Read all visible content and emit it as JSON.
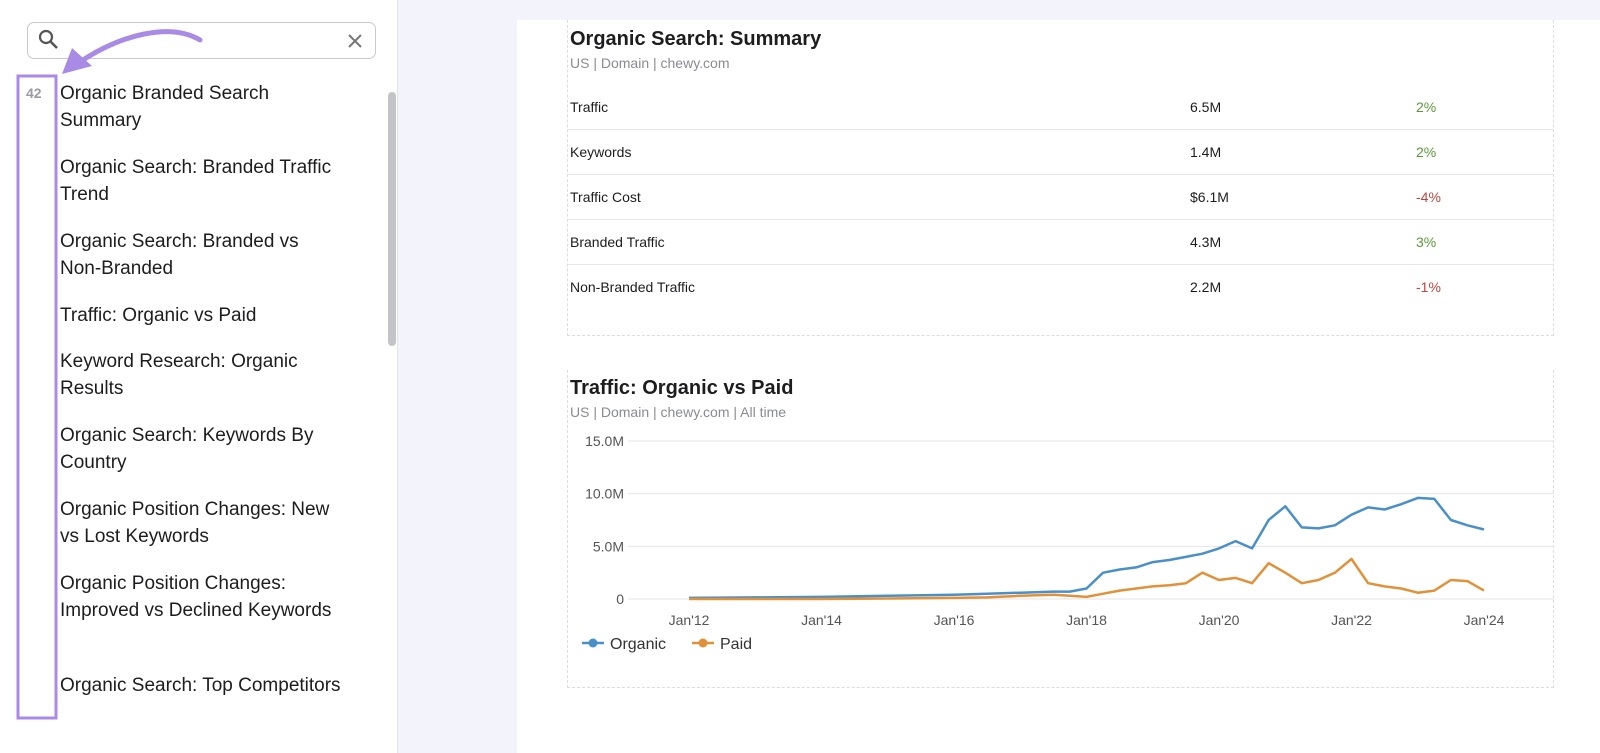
{
  "sidebar": {
    "badge": "42",
    "items": [
      "Organic Branded Search Summary",
      "Organic Search: Branded Traffic Trend",
      "Organic Search: Branded vs Non-Branded",
      "Traffic: Organic vs Paid",
      "Keyword Research: Organic Results",
      "Organic Search: Keywords By Country",
      "Organic Position Changes: New vs Lost Keywords",
      "Organic Position Changes: Improved vs Declined Keywords",
      "Organic Search: Top Competitors"
    ]
  },
  "summary": {
    "title": "Organic Search: Summary",
    "subtitle": "US | Domain | chewy.com",
    "rows": [
      [
        "Traffic",
        "6.5M",
        "2%"
      ],
      [
        "Keywords",
        "1.4M",
        "2%"
      ],
      [
        "Traffic Cost",
        "$6.1M",
        "-4%"
      ],
      [
        "Branded Traffic",
        "4.3M",
        "3%"
      ],
      [
        "Non-Branded Traffic",
        "2.2M",
        "-1%"
      ]
    ]
  },
  "chart_data": {
    "type": "line",
    "title": "Traffic: Organic vs Paid",
    "subtitle": "US | Domain | chewy.com | All time",
    "x": [
      "2012-01",
      "2013-01",
      "2014-01",
      "2015-01",
      "2016-01",
      "2016-07",
      "2017-01",
      "2017-07",
      "2017-10",
      "2018-01",
      "2018-04",
      "2018-07",
      "2018-10",
      "2019-01",
      "2019-04",
      "2019-07",
      "2019-10",
      "2020-01",
      "2020-04",
      "2020-07",
      "2020-10",
      "2021-01",
      "2021-04",
      "2021-07",
      "2021-10",
      "2022-01",
      "2022-04",
      "2022-07",
      "2022-10",
      "2023-01",
      "2023-04",
      "2023-07",
      "2023-10",
      "2024-01"
    ],
    "series": [
      {
        "name": "Organic",
        "color": "#4a8fc7",
        "values": [
          100000,
          150000,
          200000,
          300000,
          400000,
          500000,
          600000,
          700000,
          700000,
          1000000,
          2500000,
          2800000,
          3000000,
          3500000,
          3700000,
          4000000,
          4300000,
          4800000,
          5500000,
          4800000,
          7500000,
          8800000,
          6800000,
          6700000,
          7000000,
          8000000,
          8700000,
          8500000,
          9000000,
          9600000,
          9500000,
          7500000,
          7000000,
          6600000
        ]
      },
      {
        "name": "Paid",
        "color": "#e0913a",
        "values": [
          0,
          0,
          0,
          50000,
          100000,
          150000,
          300000,
          400000,
          300000,
          200000,
          500000,
          800000,
          1000000,
          1200000,
          1300000,
          1500000,
          2500000,
          1800000,
          2000000,
          1500000,
          3400000,
          2500000,
          1500000,
          1800000,
          2500000,
          3800000,
          1500000,
          1200000,
          1000000,
          600000,
          800000,
          1800000,
          1700000,
          800000
        ]
      }
    ],
    "ylim": [
      0,
      15000000
    ],
    "yticks": [
      {
        "value": 0,
        "label": "0"
      },
      {
        "value": 5000000,
        "label": "5.0M"
      },
      {
        "value": 10000000,
        "label": "10.0M"
      },
      {
        "value": 15000000,
        "label": "15.0M"
      }
    ],
    "xticks": [
      {
        "value": "2012-01",
        "label": "Jan'12"
      },
      {
        "value": "2014-01",
        "label": "Jan'14"
      },
      {
        "value": "2016-01",
        "label": "Jan'16"
      },
      {
        "value": "2018-01",
        "label": "Jan'18"
      },
      {
        "value": "2020-01",
        "label": "Jan'20"
      },
      {
        "value": "2022-01",
        "label": "Jan'22"
      },
      {
        "value": "2024-01",
        "label": "Jan'24"
      }
    ],
    "grid": true
  }
}
